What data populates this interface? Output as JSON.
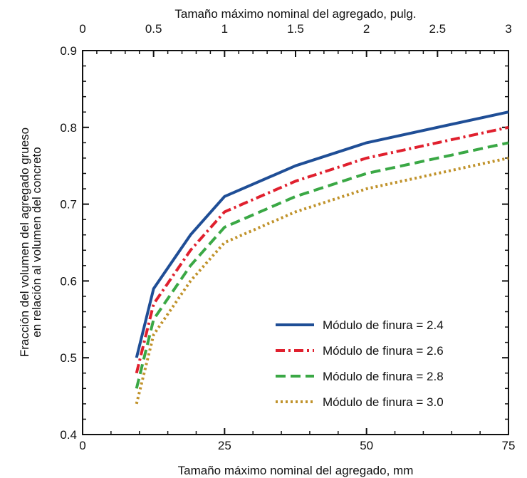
{
  "chart_data": {
    "type": "line",
    "title": "",
    "xlabel": "Tamaño máximo nominal del agregado, mm",
    "x2label": "Tamaño máximo nominal del agregado, pulg.",
    "ylabel_line1": "Fracción del volumen del agregado grueso",
    "ylabel_line2": "en relación al volumen del concreto",
    "xlim": [
      0,
      75
    ],
    "ylim": [
      0.4,
      0.9
    ],
    "x2lim": [
      0,
      3
    ],
    "xticks": [
      0,
      25,
      50,
      75
    ],
    "xtick_labels": [
      "0",
      "25",
      "50",
      "75"
    ],
    "x2ticks": [
      0,
      0.5,
      1,
      1.5,
      2,
      2.5,
      3
    ],
    "x2tick_labels": [
      "0",
      "0.5",
      "1",
      "1.5",
      "2",
      "2.5",
      "3"
    ],
    "yticks": [
      0.4,
      0.5,
      0.6,
      0.7,
      0.8,
      0.9
    ],
    "ytick_labels": [
      "0.4",
      "0.5",
      "0.6",
      "0.7",
      "0.8",
      "0.9"
    ],
    "grid": false,
    "legend_position": "lower-right",
    "x": [
      9.5,
      12.5,
      19,
      25,
      37.5,
      50,
      75
    ],
    "series": [
      {
        "name": "Módulo de finura = 2.4",
        "values": [
          0.5,
          0.59,
          0.66,
          0.71,
          0.75,
          0.78,
          0.82
        ],
        "color": "#1f4e96",
        "dash": "solid"
      },
      {
        "name": "Módulo de finura = 2.6",
        "values": [
          0.48,
          0.57,
          0.64,
          0.69,
          0.73,
          0.76,
          0.8
        ],
        "color": "#e0202e",
        "dash": "dashdot"
      },
      {
        "name": "Módulo de finura = 2.8",
        "values": [
          0.46,
          0.55,
          0.62,
          0.67,
          0.71,
          0.74,
          0.78
        ],
        "color": "#3aa845",
        "dash": "dashed"
      },
      {
        "name": "Módulo de finura = 3.0",
        "values": [
          0.44,
          0.53,
          0.6,
          0.65,
          0.69,
          0.72,
          0.76
        ],
        "color": "#c0922a",
        "dash": "dotted"
      }
    ]
  }
}
